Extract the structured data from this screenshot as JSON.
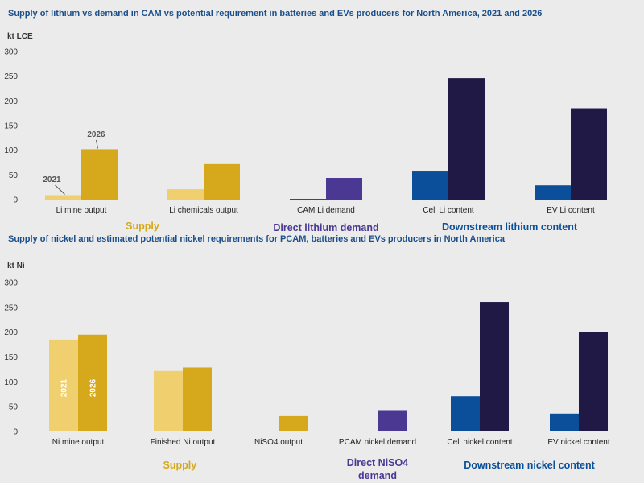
{
  "chart_data": [
    {
      "type": "bar",
      "title": "Supply of lithium vs demand in CAM vs potential requirement in batteries and EVs producers for North America, 2021 and 2026",
      "ylabel": "kt LCE",
      "ylim": [
        0,
        300
      ],
      "yticks": [
        0,
        50,
        100,
        150,
        200,
        250,
        300
      ],
      "grid": false,
      "legend": "none",
      "categories": [
        "Li mine output",
        "Li chemicals output",
        "CAM Li demand",
        "Cell Li content",
        "EV Li content"
      ],
      "series": [
        {
          "name": "2021",
          "values": [
            9,
            21,
            1,
            57,
            29
          ]
        },
        {
          "name": "2026",
          "values": [
            102,
            72,
            44,
            246,
            185
          ]
        }
      ],
      "bar_colors": [
        [
          "#f0cf6f",
          "#d6a81b"
        ],
        [
          "#f0cf6f",
          "#d6a81b"
        ],
        [
          "#4b3893",
          "#4b3893"
        ],
        [
          "#0b4f9a",
          "#201945"
        ],
        [
          "#0b4f9a",
          "#201945"
        ]
      ],
      "groups": [
        {
          "label": "Supply",
          "color": "#d6a81b"
        },
        {
          "label": "Direct lithium demand",
          "color": "#4b3893"
        },
        {
          "label": "Downstream lithium content",
          "color": "#0b4f9a"
        }
      ],
      "annotations": {
        "year_1": "2021",
        "year_2": "2026"
      }
    },
    {
      "type": "bar",
      "title": "Supply of nickel and estimated potential nickel requirements for PCAM, batteries and EVs producers in North America",
      "ylabel": "kt Ni",
      "ylim": [
        0,
        300
      ],
      "yticks": [
        0,
        50,
        100,
        150,
        200,
        250,
        300
      ],
      "grid": false,
      "legend": "none",
      "categories": [
        "Ni mine output",
        "Finished Ni output",
        "NiSO4 output",
        "PCAM nickel demand",
        "Cell nickel content",
        "EV nickel content"
      ],
      "series": [
        {
          "name": "2021",
          "values": [
            185,
            122,
            1,
            1,
            71,
            36
          ]
        },
        {
          "name": "2026",
          "values": [
            195,
            129,
            31,
            43,
            261,
            200
          ]
        }
      ],
      "bar_colors": [
        [
          "#f0cf6f",
          "#d6a81b"
        ],
        [
          "#f0cf6f",
          "#d6a81b"
        ],
        [
          "#f0cf6f",
          "#d6a81b"
        ],
        [
          "#4b3893",
          "#4b3893"
        ],
        [
          "#0b4f9a",
          "#201945"
        ],
        [
          "#0b4f9a",
          "#201945"
        ]
      ],
      "groups": [
        {
          "label": "Supply",
          "color": "#d6a81b"
        },
        {
          "label": "Direct NiSO4 demand",
          "color": "#4b3893"
        },
        {
          "label": "Downstream nickel content",
          "color": "#0b4f9a"
        }
      ],
      "annotations": {
        "year_1": "2021",
        "year_2": "2026"
      }
    }
  ]
}
